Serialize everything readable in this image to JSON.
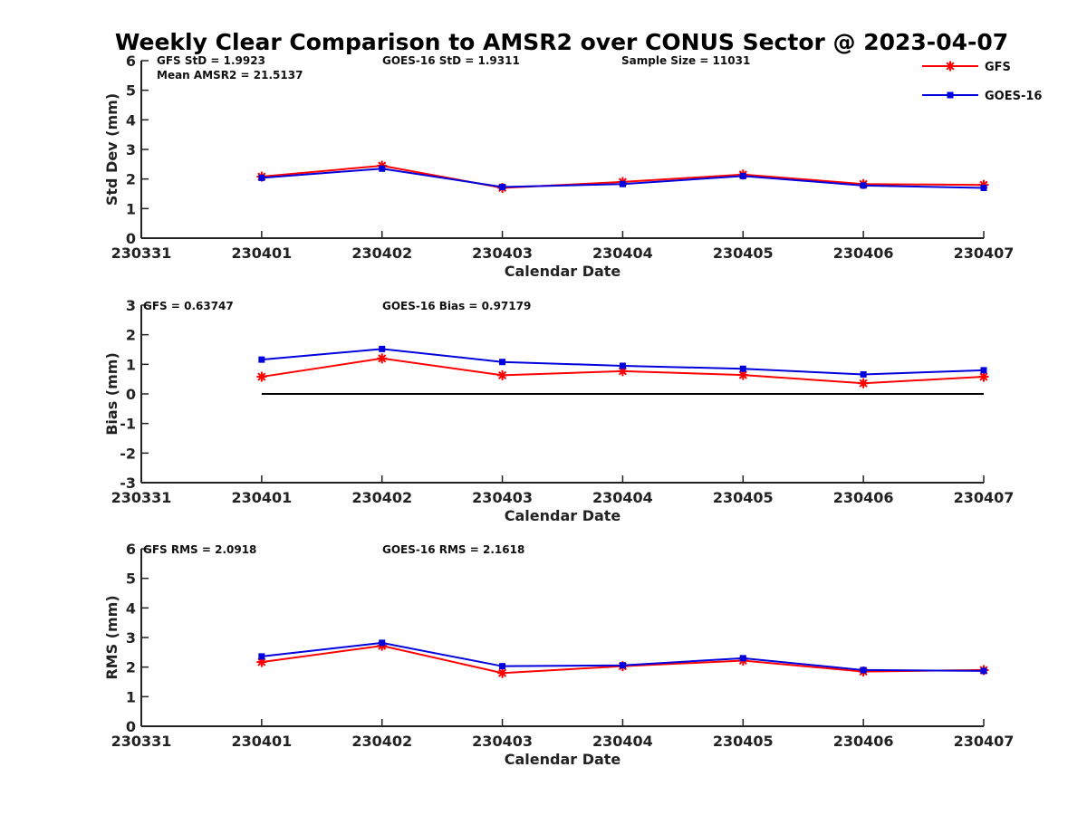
{
  "title": "Weekly Clear Comparison to AMSR2 over CONUS Sector @ 2023-04-07",
  "legend": {
    "placement": "top-right",
    "entries": [
      {
        "label": "GFS",
        "color": "#ff0000",
        "marker": "asterisk"
      },
      {
        "label": "GOES-16",
        "color": "#0000dd",
        "marker": "square"
      }
    ]
  },
  "chart_data": [
    {
      "type": "line",
      "xlabel": "Calendar Date",
      "ylabel": "Std Dev (mm)",
      "ylim": [
        0,
        6
      ],
      "yticks": [
        "0",
        "1",
        "2",
        "3",
        "4",
        "5",
        "6"
      ],
      "xticks": [
        "230331",
        "230401",
        "230402",
        "230403",
        "230404",
        "230405",
        "230406",
        "230407"
      ],
      "x": [
        "230401",
        "230402",
        "230403",
        "230404",
        "230405",
        "230406",
        "230407"
      ],
      "annotations": [
        "GFS StD = 1.9923",
        "GOES-16 StD = 1.9311",
        "Sample Size = 11031",
        "Mean AMSR2 = 21.5137"
      ],
      "series": [
        {
          "name": "GFS",
          "values": [
            2.08,
            2.45,
            1.7,
            1.9,
            2.15,
            1.83,
            1.8
          ]
        },
        {
          "name": "GOES-16",
          "values": [
            2.04,
            2.35,
            1.73,
            1.83,
            2.1,
            1.78,
            1.7
          ]
        }
      ],
      "zero_line": false,
      "grid": false
    },
    {
      "type": "line",
      "xlabel": "Calendar Date",
      "ylabel": "Bias (mm)",
      "ylim": [
        -3,
        3
      ],
      "yticks": [
        "-3",
        "-2",
        "-1",
        "0",
        "1",
        "2",
        "3"
      ],
      "xticks": [
        "230331",
        "230401",
        "230402",
        "230403",
        "230404",
        "230405",
        "230406",
        "230407"
      ],
      "x": [
        "230401",
        "230402",
        "230403",
        "230404",
        "230405",
        "230406",
        "230407"
      ],
      "annotations": [
        "GFS = 0.63747",
        "GOES-16 Bias  = 0.97179"
      ],
      "series": [
        {
          "name": "GFS",
          "values": [
            0.58,
            1.2,
            0.63,
            0.77,
            0.64,
            0.36,
            0.58
          ]
        },
        {
          "name": "GOES-16",
          "values": [
            1.16,
            1.52,
            1.08,
            0.95,
            0.85,
            0.66,
            0.8
          ]
        }
      ],
      "zero_line": true,
      "grid": false
    },
    {
      "type": "line",
      "xlabel": "Calendar Date",
      "ylabel": "RMS (mm)",
      "ylim": [
        0,
        6
      ],
      "yticks": [
        "0",
        "1",
        "2",
        "3",
        "4",
        "5",
        "6"
      ],
      "xticks": [
        "230331",
        "230401",
        "230402",
        "230403",
        "230404",
        "230405",
        "230406",
        "230407"
      ],
      "x": [
        "230401",
        "230402",
        "230403",
        "230404",
        "230405",
        "230406",
        "230407"
      ],
      "annotations": [
        "GFS RMS = 2.0918",
        "GOES-16 RMS = 2.1618"
      ],
      "series": [
        {
          "name": "GFS",
          "values": [
            2.17,
            2.72,
            1.8,
            2.03,
            2.22,
            1.85,
            1.9
          ]
        },
        {
          "name": "GOES-16",
          "values": [
            2.36,
            2.82,
            2.03,
            2.06,
            2.3,
            1.9,
            1.87
          ]
        }
      ],
      "zero_line": false,
      "grid": false
    }
  ]
}
